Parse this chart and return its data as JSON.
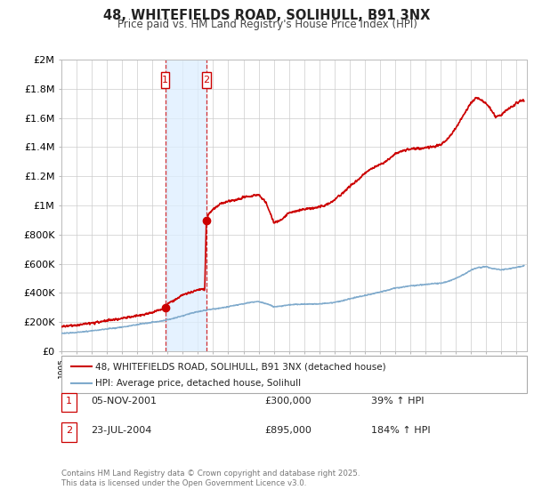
{
  "title": "48, WHITEFIELDS ROAD, SOLIHULL, B91 3NX",
  "subtitle": "Price paid vs. HM Land Registry's House Price Index (HPI)",
  "background_color": "#ffffff",
  "plot_bg_color": "#ffffff",
  "grid_color": "#cccccc",
  "hpi_line_color": "#7faacc",
  "property_line_color": "#cc0000",
  "purchase1_x": 2001.846,
  "purchase1_price": 300000,
  "purchase2_x": 2004.553,
  "purchase2_price": 895000,
  "annotation1": "05-NOV-2001",
  "annotation2": "23-JUL-2004",
  "price1_str": "£300,000",
  "price2_str": "£895,000",
  "pct1_str": "39% ↑ HPI",
  "pct2_str": "184% ↑ HPI",
  "legend1": "48, WHITEFIELDS ROAD, SOLIHULL, B91 3NX (detached house)",
  "legend2": "HPI: Average price, detached house, Solihull",
  "footer": "Contains HM Land Registry data © Crown copyright and database right 2025.\nThis data is licensed under the Open Government Licence v3.0.",
  "ylim": [
    0,
    2000000
  ],
  "yticks": [
    0,
    200000,
    400000,
    600000,
    800000,
    1000000,
    1200000,
    1400000,
    1600000,
    1800000,
    2000000
  ],
  "ytick_labels": [
    "£0",
    "£200K",
    "£400K",
    "£600K",
    "£800K",
    "£1M",
    "£1.2M",
    "£1.4M",
    "£1.6M",
    "£1.8M",
    "£2M"
  ],
  "xmin": 1995.0,
  "xmax": 2025.7,
  "highlight_color": "#ddeeff"
}
